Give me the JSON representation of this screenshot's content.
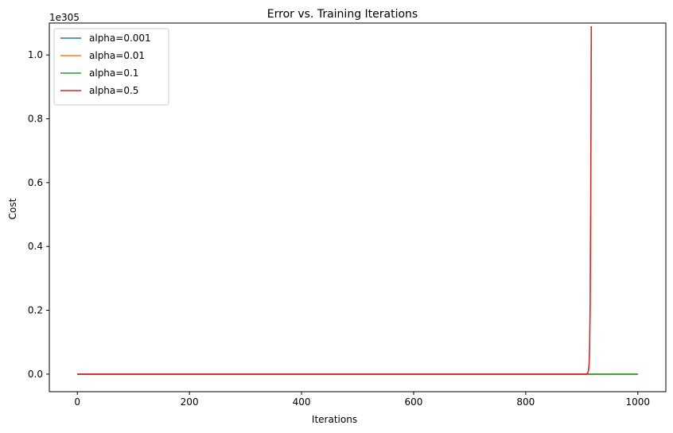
{
  "chart_data": {
    "type": "line",
    "title": "Error vs. Training Iterations",
    "xlabel": "Iterations",
    "ylabel": "Cost",
    "y_offset_label": "1e305",
    "xlim": [
      -50,
      1050
    ],
    "ylim": [
      -0.055,
      1.1
    ],
    "xticks": [
      0,
      200,
      400,
      600,
      800,
      1000
    ],
    "xtick_labels": [
      "0",
      "200",
      "400",
      "600",
      "800",
      "1000"
    ],
    "yticks": [
      0.0,
      0.2,
      0.4,
      0.6,
      0.8,
      1.0
    ],
    "ytick_labels": [
      "0.0",
      "0.2",
      "0.4",
      "0.6",
      "0.8",
      "1.0"
    ],
    "grid": false,
    "legend_position": "top-left",
    "series": [
      {
        "name": "alpha=0.001",
        "color": "#1f77b4",
        "x": [
          0,
          1000
        ],
        "y": [
          0,
          0
        ]
      },
      {
        "name": "alpha=0.01",
        "color": "#ff7f0e",
        "x": [
          0,
          1000
        ],
        "y": [
          0,
          0
        ]
      },
      {
        "name": "alpha=0.1",
        "color": "#2ca02c",
        "x": [
          0,
          1000
        ],
        "y": [
          0,
          0
        ]
      },
      {
        "name": "alpha=0.5",
        "color": "#d62728",
        "x": [
          0,
          905,
          908,
          910,
          911,
          912,
          913,
          914,
          915,
          916,
          917
        ],
        "y": [
          0,
          0,
          0.0005,
          0.002,
          0.005,
          0.012,
          0.03,
          0.08,
          0.22,
          0.55,
          1.09
        ]
      }
    ]
  }
}
